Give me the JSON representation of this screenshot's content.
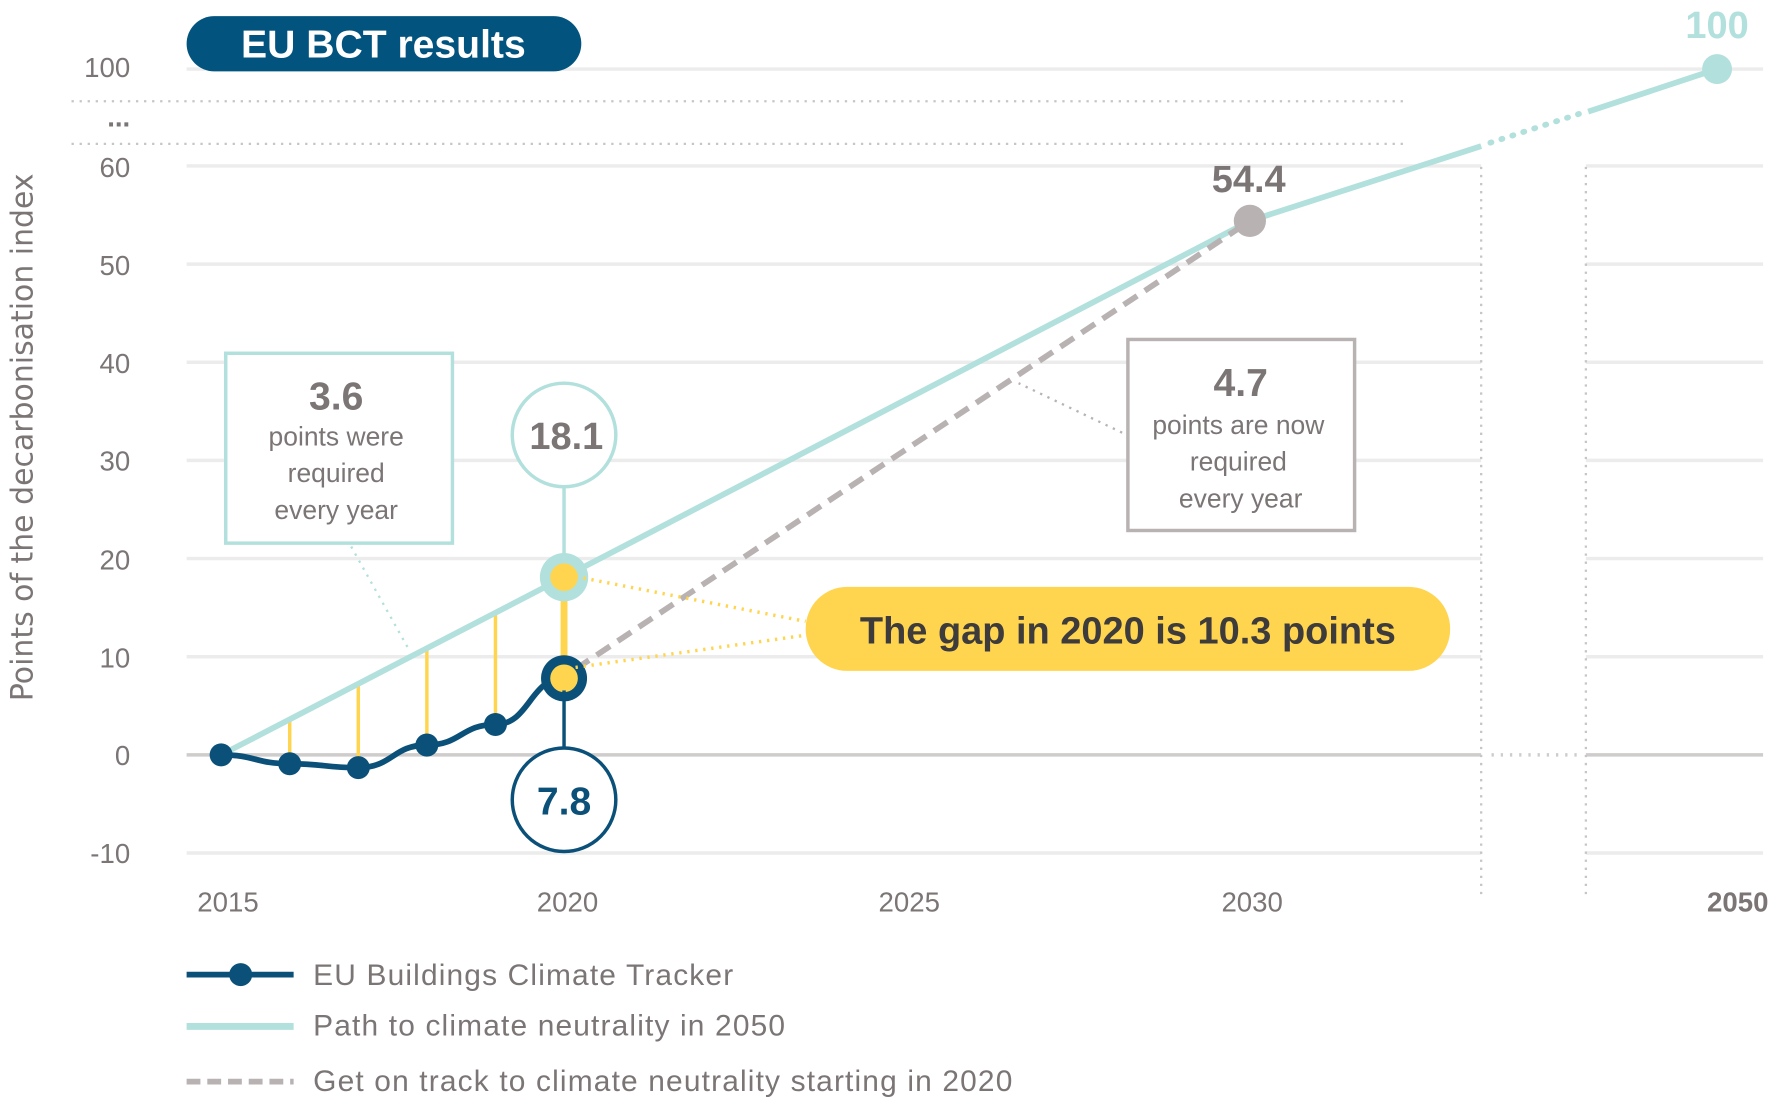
{
  "title": "EU BCT results",
  "chart_data": {
    "type": "line",
    "title": "EU BCT results",
    "ylabel": "Points of the decarbonisation index",
    "xlabel": "",
    "x_ticks": [
      "2015",
      "2020",
      "2025",
      "2030",
      "2050"
    ],
    "y_ticks": [
      "100",
      "...",
      "60",
      "50",
      "40",
      "30",
      "20",
      "10",
      "0",
      "-10"
    ],
    "ylim": [
      -10,
      100
    ],
    "axis_break": {
      "y": "between 60 and 100",
      "x": "between 2030 and 2050"
    },
    "grid": true,
    "legend_position": "bottom-left",
    "series": [
      {
        "name": "EU Buildings Climate Tracker",
        "color": "#0b5078",
        "style": "solid-markers",
        "x": [
          2015,
          2016,
          2017,
          2018,
          2019,
          2020
        ],
        "y": [
          0,
          -0.9,
          -1.3,
          1.0,
          3.1,
          7.8
        ]
      },
      {
        "name": "Path to climate neutrality in 2050",
        "color": "#b2e0dc",
        "style": "solid",
        "x": [
          2015,
          2020,
          2030,
          2050
        ],
        "y": [
          0,
          18.1,
          54.4,
          100
        ]
      },
      {
        "name": "Get on track to climate neutrality starting in 2020",
        "color": "#b8b2b2",
        "style": "dashed",
        "x": [
          2020,
          2030
        ],
        "y": [
          7.8,
          54.4
        ]
      }
    ],
    "gap_lines": {
      "color": "#ffd54f",
      "x": [
        2016,
        2017,
        2018,
        2019,
        2020
      ]
    },
    "annotations": {
      "path_2020": "18.1",
      "bct_2020": "7.8",
      "track_2030": "54.4",
      "path_2050": "100",
      "box_before": {
        "value": "3.6",
        "lines": [
          "points were",
          "required",
          "every year"
        ]
      },
      "box_now": {
        "value": "4.7",
        "lines": [
          "points are now",
          "required",
          "every year"
        ]
      },
      "gap": "The gap in 2020 is 10.3 points"
    }
  },
  "colors": {
    "navy": "#0b5078",
    "teal": "#b2e0dc",
    "yellow": "#ffd54f",
    "gray": "#b8b2b2",
    "text": "#7b7575",
    "title_bg": "#02547f"
  }
}
